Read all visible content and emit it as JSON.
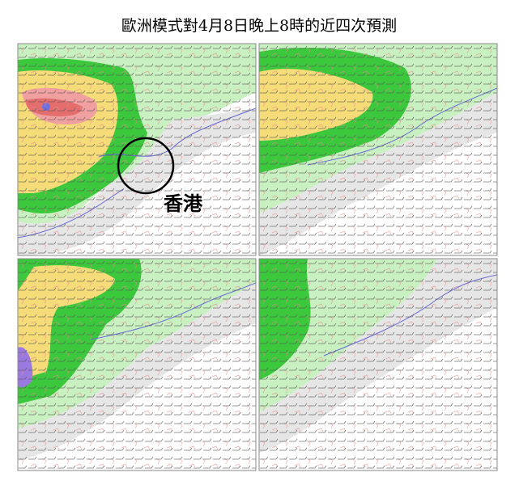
{
  "title": "歐洲模式對4月8日晚上8時的近四次預測",
  "annotation": "香港"
}
